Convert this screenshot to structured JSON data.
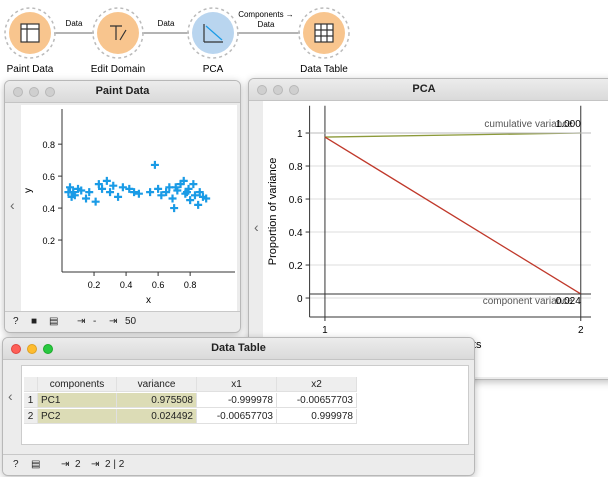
{
  "workflow": {
    "nodes": [
      {
        "label": "Paint Data"
      },
      {
        "label": "Edit Domain"
      },
      {
        "label": "PCA"
      },
      {
        "label": "Data Table"
      }
    ],
    "links": [
      {
        "label": [
          "Data"
        ]
      },
      {
        "label": [
          "Data"
        ]
      },
      {
        "label": [
          "Components →",
          "Data"
        ]
      }
    ]
  },
  "paint_data": {
    "title": "Paint Data",
    "status": [
      "-",
      "50"
    ],
    "chart": {
      "type": "scatter",
      "x_label": "x",
      "y_label": "y",
      "color": "#1a9be6",
      "x": [
        0.04,
        0.05,
        0.06,
        0.07,
        0.08,
        0.1,
        0.12,
        0.15,
        0.17,
        0.21,
        0.23,
        0.25,
        0.28,
        0.3,
        0.32,
        0.35,
        0.38,
        0.42,
        0.45,
        0.48,
        0.55,
        0.58,
        0.6,
        0.62,
        0.65,
        0.67,
        0.69,
        0.7,
        0.71,
        0.72,
        0.74,
        0.76,
        0.77,
        0.78,
        0.79,
        0.8,
        0.82,
        0.83,
        0.85,
        0.86,
        0.88,
        0.9
      ],
      "values": [
        0.5,
        0.53,
        0.47,
        0.5,
        0.48,
        0.52,
        0.51,
        0.46,
        0.5,
        0.44,
        0.55,
        0.52,
        0.57,
        0.5,
        0.54,
        0.47,
        0.53,
        0.52,
        0.5,
        0.49,
        0.5,
        0.67,
        0.52,
        0.48,
        0.5,
        0.53,
        0.46,
        0.4,
        0.53,
        0.51,
        0.55,
        0.57,
        0.49,
        0.5,
        0.52,
        0.45,
        0.55,
        0.48,
        0.42,
        0.5,
        0.47,
        0.46
      ],
      "xlim": [
        0,
        1.08
      ],
      "ylim": [
        0,
        1.02
      ],
      "xticks": [
        0.2,
        0.4,
        0.6,
        0.8
      ],
      "yticks": [
        0.2,
        0.4,
        0.6,
        0.8
      ]
    }
  },
  "pca": {
    "title": "PCA",
    "chart": {
      "type": "line",
      "y_label": "Proportion of variance",
      "x_label": "Components",
      "x": [
        1,
        2
      ],
      "series": [
        {
          "name": "cumulative variance",
          "color": "#8c9a3a",
          "values": [
            0.975508,
            1.0
          ],
          "end_label": "1.000"
        },
        {
          "name": "component variance",
          "color": "#c0392b",
          "values": [
            0.975508,
            0.024492
          ],
          "end_label": "0.024"
        }
      ],
      "xlim": [
        0.94,
        2.04
      ],
      "ylim": [
        -0.115,
        1.165
      ],
      "xticks": [
        1,
        2
      ],
      "yticks": [
        0,
        0.2,
        0.4,
        0.6,
        0.8,
        1
      ],
      "grid": true
    }
  },
  "data_table": {
    "title": "Data Table",
    "columns": [
      "components",
      "variance",
      "x1",
      "x2"
    ],
    "row_numbers": [
      1,
      2
    ],
    "rows": [
      [
        "PC1",
        0.975508,
        -0.999978,
        -0.00657703
      ],
      [
        "PC2",
        0.024492,
        -0.00657703,
        0.999978
      ]
    ],
    "status": [
      "2",
      "2 | 2"
    ]
  }
}
